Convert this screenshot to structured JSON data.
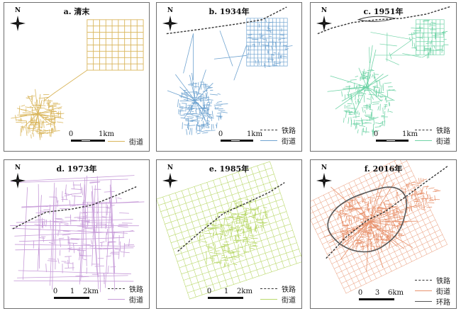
{
  "colors": {
    "qing": "#d9b55a",
    "y1934": "#6fa3d0",
    "y1951": "#6fd3a6",
    "y1973": "#c69ad8",
    "y1985": "#b9d86a",
    "y2016": "#e8936e",
    "rail": "#333333",
    "ring": "#555555"
  },
  "panels": [
    {
      "id": "a",
      "title": "a. 清末",
      "legend": [
        "街道"
      ],
      "scale": [
        "0",
        "1km"
      ],
      "north": "N"
    },
    {
      "id": "b",
      "title": "b. 1934年",
      "legend": [
        "铁路",
        "街道"
      ],
      "scale": [
        "0",
        "1km"
      ],
      "north": "N"
    },
    {
      "id": "c",
      "title": "c. 1951年",
      "legend": [
        "铁路",
        "街道"
      ],
      "scale": [
        "0",
        "1km"
      ],
      "north": "N"
    },
    {
      "id": "d",
      "title": "d. 1973年",
      "legend": [
        "铁路",
        "街道"
      ],
      "scale": [
        "0",
        "1",
        "2km"
      ],
      "north": "N"
    },
    {
      "id": "e",
      "title": "e. 1985年",
      "legend": [
        "铁路",
        "街道"
      ],
      "scale": [
        "0",
        "1",
        "2km"
      ],
      "north": "N"
    },
    {
      "id": "f",
      "title": "f. 2016年",
      "legend": [
        "铁路",
        "街道",
        "环路"
      ],
      "scale": [
        "0",
        "3",
        "6km"
      ],
      "north": "N"
    }
  ]
}
